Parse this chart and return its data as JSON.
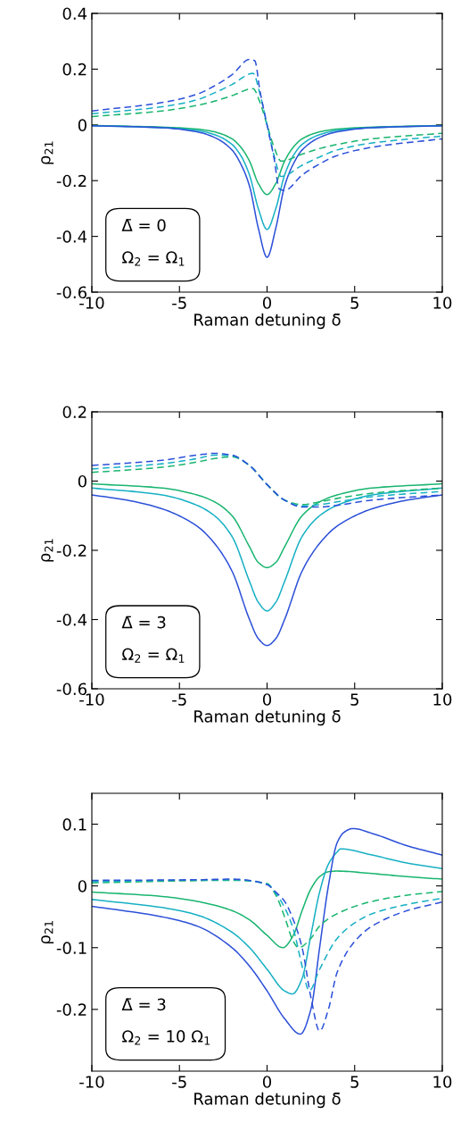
{
  "chart_data": [
    {
      "type": "line",
      "xlabel": "Raman detuning δ̄",
      "ylabel": "ρ$_{21}$",
      "xlim": [
        -10,
        10
      ],
      "ylim": [
        -0.6,
        0.4
      ],
      "xticks": [
        -10,
        -5,
        0,
        5,
        10
      ],
      "yticks": [
        -0.6,
        -0.4,
        -0.2,
        0,
        0.2,
        0.4
      ],
      "grid": false,
      "legend": false,
      "annotations": [
        "Δ̄ = 0",
        "Ω$_{2}$ = Ω$_{1}$"
      ],
      "series": [
        {
          "color": "#19b56f",
          "line_style": "solid",
          "x": [
            -10,
            -6,
            -4,
            -3,
            -2,
            -1.5,
            -1,
            -0.5,
            0,
            0.5,
            1,
            1.5,
            2,
            3,
            4,
            6,
            10
          ],
          "values": [
            -0.002,
            -0.008,
            -0.015,
            -0.025,
            -0.05,
            -0.08,
            -0.13,
            -0.21,
            -0.25,
            -0.21,
            -0.13,
            -0.08,
            -0.05,
            -0.025,
            -0.015,
            -0.008,
            -0.002
          ]
        },
        {
          "color": "#17b0c4",
          "line_style": "solid",
          "x": [
            -10,
            -6,
            -4,
            -3,
            -2,
            -1.5,
            -1,
            -0.5,
            0,
            0.5,
            1,
            1.5,
            2,
            3,
            4,
            6,
            10
          ],
          "values": [
            -0.003,
            -0.01,
            -0.02,
            -0.035,
            -0.07,
            -0.11,
            -0.18,
            -0.3,
            -0.375,
            -0.3,
            -0.18,
            -0.11,
            -0.07,
            -0.035,
            -0.02,
            -0.01,
            -0.003
          ]
        },
        {
          "color": "#2c50d8",
          "line_style": "solid",
          "x": [
            -10,
            -6,
            -4,
            -3,
            -2,
            -1.5,
            -1,
            -0.5,
            0,
            0.5,
            1,
            1.5,
            2,
            3,
            4,
            6,
            10
          ],
          "values": [
            -0.003,
            -0.01,
            -0.025,
            -0.045,
            -0.09,
            -0.14,
            -0.22,
            -0.37,
            -0.475,
            -0.37,
            -0.22,
            -0.14,
            -0.09,
            -0.045,
            -0.025,
            -0.01,
            -0.003
          ]
        },
        {
          "color": "#19b56f",
          "line_style": "dashed",
          "x": [
            -10,
            -6,
            -4,
            -3,
            -2,
            -0.8,
            -0.4,
            0,
            0.4,
            0.8,
            2,
            3,
            4,
            6,
            10
          ],
          "values": [
            0.03,
            0.05,
            0.07,
            0.085,
            0.105,
            0.13,
            0.08,
            0.0,
            -0.08,
            -0.13,
            -0.105,
            -0.085,
            -0.07,
            -0.05,
            -0.03
          ]
        },
        {
          "color": "#17b0c4",
          "line_style": "dashed",
          "x": [
            -10,
            -6,
            -4,
            -3,
            -2,
            -0.8,
            -0.4,
            0,
            0.4,
            0.8,
            2,
            3,
            4,
            6,
            10
          ],
          "values": [
            0.04,
            0.065,
            0.09,
            0.115,
            0.145,
            0.185,
            0.11,
            0.0,
            -0.11,
            -0.185,
            -0.145,
            -0.115,
            -0.09,
            -0.065,
            -0.04
          ]
        },
        {
          "color": "#2c50d8",
          "line_style": "dashed",
          "x": [
            -10,
            -6,
            -4,
            -3,
            -2,
            -1,
            -0.7,
            -0.4,
            0,
            0.4,
            0.7,
            1,
            2,
            3,
            4,
            6,
            10
          ],
          "values": [
            0.05,
            0.08,
            0.11,
            0.14,
            0.18,
            0.235,
            0.23,
            0.12,
            0.0,
            -0.12,
            -0.23,
            -0.235,
            -0.18,
            -0.14,
            -0.11,
            -0.08,
            -0.05
          ]
        }
      ]
    },
    {
      "type": "line",
      "xlabel": "Raman detuning δ̄",
      "ylabel": "ρ$_{21}$",
      "xlim": [
        -10,
        10
      ],
      "ylim": [
        -0.6,
        0.2
      ],
      "xticks": [
        -10,
        -5,
        0,
        5,
        10
      ],
      "yticks": [
        -0.6,
        -0.4,
        -0.2,
        0,
        0.2
      ],
      "grid": false,
      "legend": false,
      "annotations": [
        "Δ̄ = 3",
        "Ω$_{2}$ = Ω$_{1}$"
      ],
      "series": [
        {
          "color": "#19b56f",
          "line_style": "solid",
          "x": [
            -10,
            -6,
            -4,
            -3,
            -2,
            -1,
            -0.5,
            0,
            0.5,
            1,
            2,
            3,
            4,
            6,
            10
          ],
          "values": [
            -0.008,
            -0.02,
            -0.04,
            -0.06,
            -0.1,
            -0.19,
            -0.235,
            -0.25,
            -0.235,
            -0.19,
            -0.1,
            -0.06,
            -0.04,
            -0.02,
            -0.008
          ]
        },
        {
          "color": "#17b0c4",
          "line_style": "solid",
          "x": [
            -10,
            -6,
            -4,
            -3,
            -2,
            -1,
            -0.5,
            0,
            0.5,
            1,
            2,
            3,
            4,
            6,
            10
          ],
          "values": [
            -0.02,
            -0.04,
            -0.07,
            -0.1,
            -0.16,
            -0.29,
            -0.35,
            -0.375,
            -0.35,
            -0.29,
            -0.16,
            -0.1,
            -0.07,
            -0.04,
            -0.02
          ]
        },
        {
          "color": "#2c50d8",
          "line_style": "solid",
          "x": [
            -10,
            -8,
            -6,
            -4,
            -3,
            -2,
            -1,
            -0.5,
            0,
            0.5,
            1,
            2,
            3,
            4,
            6,
            8,
            10
          ],
          "values": [
            -0.04,
            -0.055,
            -0.08,
            -0.13,
            -0.18,
            -0.26,
            -0.4,
            -0.455,
            -0.475,
            -0.455,
            -0.4,
            -0.26,
            -0.18,
            -0.13,
            -0.08,
            -0.055,
            -0.04
          ]
        },
        {
          "color": "#19b56f",
          "line_style": "dashed",
          "x": [
            -10,
            -6,
            -4,
            -3,
            -2,
            -1,
            0,
            1,
            2,
            3,
            4,
            6,
            10
          ],
          "values": [
            0.025,
            0.04,
            0.055,
            0.065,
            0.07,
            0.045,
            -0.01,
            -0.055,
            -0.068,
            -0.06,
            -0.05,
            -0.035,
            -0.02
          ]
        },
        {
          "color": "#17b0c4",
          "line_style": "dashed",
          "x": [
            -10,
            -6,
            -4,
            -3,
            -2,
            -1,
            0,
            1,
            2,
            3,
            4,
            6,
            10
          ],
          "values": [
            0.035,
            0.05,
            0.065,
            0.075,
            0.073,
            0.045,
            -0.01,
            -0.055,
            -0.072,
            -0.068,
            -0.06,
            -0.045,
            -0.03
          ]
        },
        {
          "color": "#2c50d8",
          "line_style": "dashed",
          "x": [
            -10,
            -6,
            -4,
            -3,
            -2,
            -1,
            0,
            1,
            2,
            3,
            4,
            6,
            10
          ],
          "values": [
            0.045,
            0.06,
            0.075,
            0.08,
            0.075,
            0.045,
            -0.01,
            -0.055,
            -0.075,
            -0.075,
            -0.07,
            -0.055,
            -0.04
          ]
        }
      ]
    },
    {
      "type": "line",
      "xlabel": "Raman detuning δ̄",
      "ylabel": "ρ$_{21}$",
      "xlim": [
        -10,
        10
      ],
      "ylim": [
        -0.3,
        0.15
      ],
      "xticks": [
        -10,
        -5,
        0,
        5,
        10
      ],
      "yticks": [
        -0.2,
        -0.1,
        0,
        0.1
      ],
      "grid": false,
      "legend": false,
      "annotations": [
        "Δ̄ = 3",
        "Ω$_{2}$ = 10 Ω$_{1}$"
      ],
      "series": [
        {
          "color": "#19b56f",
          "line_style": "solid",
          "x": [
            -10,
            -6,
            -4,
            -2,
            -1,
            0,
            0.9,
            1.5,
            2,
            2.5,
            3,
            3.5,
            4,
            6,
            8,
            10
          ],
          "values": [
            -0.01,
            -0.017,
            -0.025,
            -0.04,
            -0.055,
            -0.08,
            -0.1,
            -0.08,
            -0.04,
            -0.005,
            0.015,
            0.023,
            0.024,
            0.02,
            0.015,
            0.011
          ]
        },
        {
          "color": "#17b0c4",
          "line_style": "solid",
          "x": [
            -10,
            -6,
            -4,
            -2,
            -1,
            0,
            1,
            1.45,
            2,
            2.5,
            3,
            3.5,
            4,
            4.2,
            6,
            8,
            10
          ],
          "values": [
            -0.022,
            -0.035,
            -0.047,
            -0.075,
            -0.1,
            -0.135,
            -0.17,
            -0.175,
            -0.15,
            -0.08,
            -0.01,
            0.035,
            0.055,
            0.06,
            0.05,
            0.037,
            0.028
          ]
        },
        {
          "color": "#2c50d8",
          "line_style": "solid",
          "x": [
            -10,
            -6,
            -4,
            -2,
            -1,
            0,
            1,
            1.9,
            2.5,
            3,
            3.5,
            4,
            4.4,
            4.9,
            6,
            8,
            10
          ],
          "values": [
            -0.033,
            -0.05,
            -0.065,
            -0.1,
            -0.13,
            -0.17,
            -0.215,
            -0.24,
            -0.2,
            -0.1,
            0.0,
            0.07,
            0.087,
            0.093,
            0.085,
            0.065,
            0.05
          ]
        },
        {
          "color": "#19b56f",
          "line_style": "dashed",
          "x": [
            -10,
            -2,
            0,
            0.5,
            1,
            1.5,
            1.8,
            2.5,
            3,
            4,
            6,
            8,
            10
          ],
          "values": [
            0.005,
            0.009,
            0.004,
            -0.015,
            -0.05,
            -0.09,
            -0.1,
            -0.085,
            -0.065,
            -0.045,
            -0.025,
            -0.015,
            -0.009
          ]
        },
        {
          "color": "#17b0c4",
          "line_style": "dashed",
          "x": [
            -10,
            -2,
            0,
            0.5,
            1,
            1.5,
            2,
            2.4,
            3,
            4,
            5,
            6,
            8,
            10
          ],
          "values": [
            0.007,
            0.01,
            0.003,
            -0.012,
            -0.035,
            -0.07,
            -0.13,
            -0.17,
            -0.135,
            -0.085,
            -0.06,
            -0.045,
            -0.03,
            -0.02
          ]
        },
        {
          "color": "#2c50d8",
          "line_style": "dashed",
          "x": [
            -10,
            -4,
            -2,
            -1,
            0,
            0.5,
            1,
            1.5,
            2,
            2.5,
            3,
            3.5,
            4,
            5,
            6,
            8,
            10
          ],
          "values": [
            0.009,
            0.01,
            0.011,
            0.009,
            0.002,
            -0.01,
            -0.025,
            -0.055,
            -0.1,
            -0.18,
            -0.235,
            -0.2,
            -0.14,
            -0.09,
            -0.065,
            -0.04,
            -0.026
          ]
        }
      ]
    }
  ]
}
